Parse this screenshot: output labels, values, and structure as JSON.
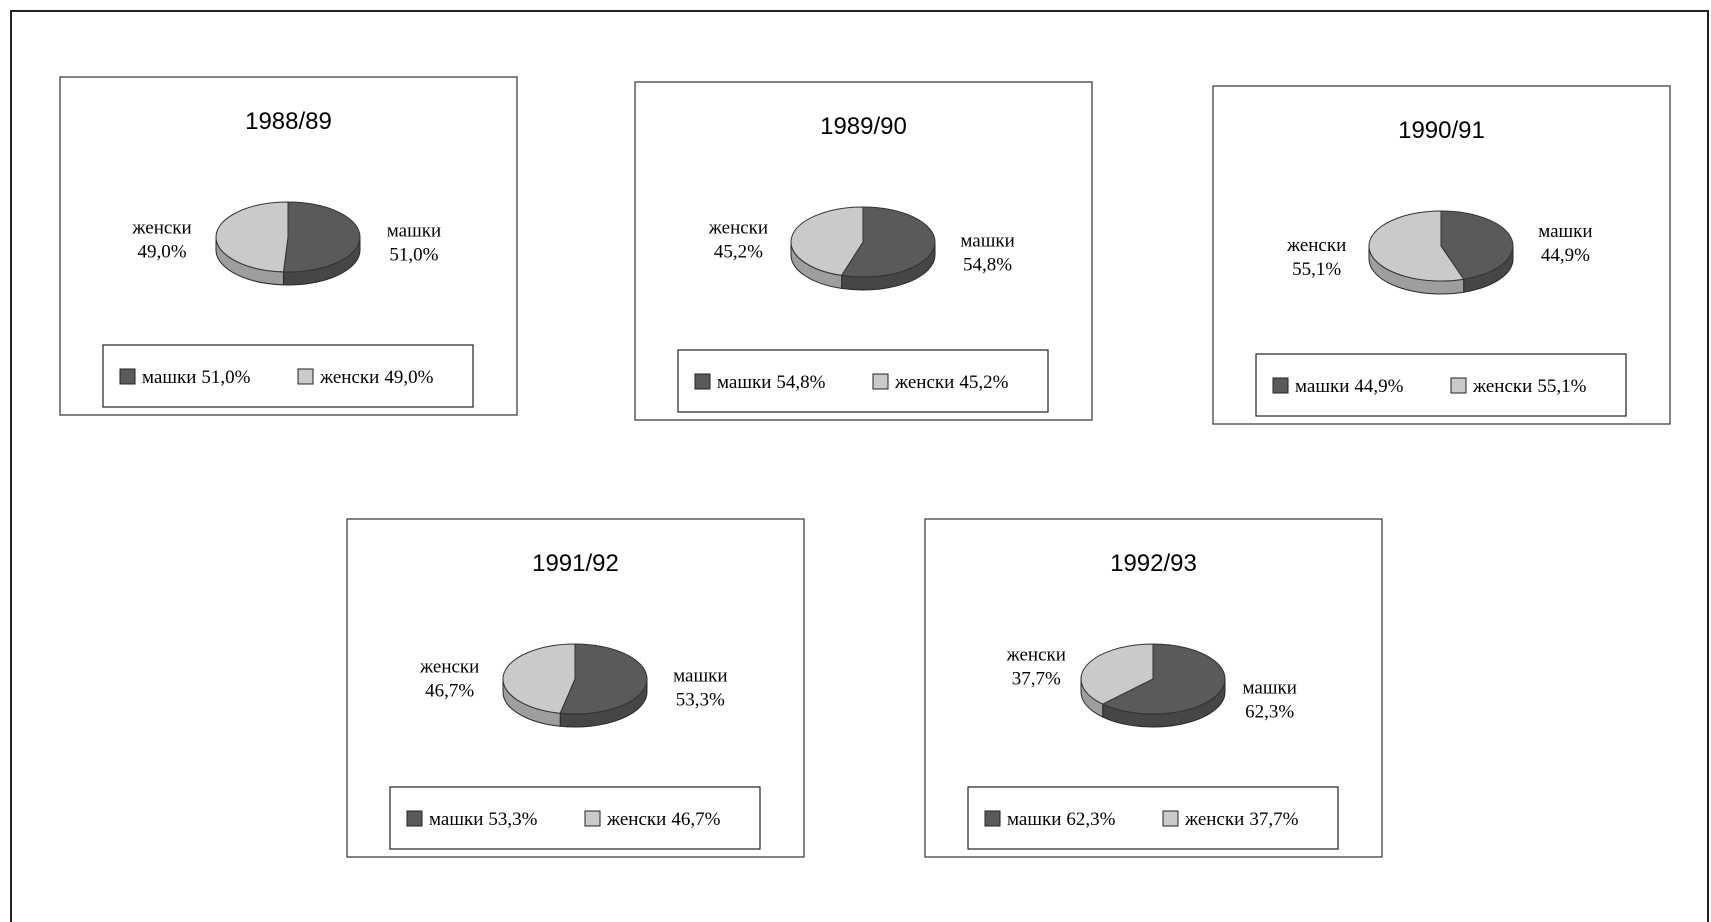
{
  "chart_data": [
    {
      "type": "pie",
      "title": "1988/89",
      "categories": [
        "машки",
        "женски"
      ],
      "values": [
        51.0,
        49.0
      ],
      "value_labels": [
        "51,0%",
        "49,0%"
      ],
      "colors": [
        "#5a5a5a",
        "#cacaca"
      ]
    },
    {
      "type": "pie",
      "title": "1989/90",
      "categories": [
        "машки",
        "женски"
      ],
      "values": [
        54.8,
        45.2
      ],
      "value_labels": [
        "54,8%",
        "45,2%"
      ],
      "colors": [
        "#5a5a5a",
        "#cacaca"
      ]
    },
    {
      "type": "pie",
      "title": "1990/91",
      "categories": [
        "машки",
        "женски"
      ],
      "values": [
        44.9,
        55.1
      ],
      "value_labels": [
        "44,9%",
        "55,1%"
      ],
      "colors": [
        "#5a5a5a",
        "#cacaca"
      ]
    },
    {
      "type": "pie",
      "title": "1991/92",
      "categories": [
        "машки",
        "женски"
      ],
      "values": [
        53.3,
        46.7
      ],
      "value_labels": [
        "53,3%",
        "46,7%"
      ],
      "colors": [
        "#5a5a5a",
        "#cacaca"
      ]
    },
    {
      "type": "pie",
      "title": "1992/93",
      "categories": [
        "машки",
        "женски"
      ],
      "values": [
        62.3,
        37.7
      ],
      "value_labels": [
        "62,3%",
        "37,7%"
      ],
      "colors": [
        "#5a5a5a",
        "#cacaca"
      ]
    }
  ]
}
